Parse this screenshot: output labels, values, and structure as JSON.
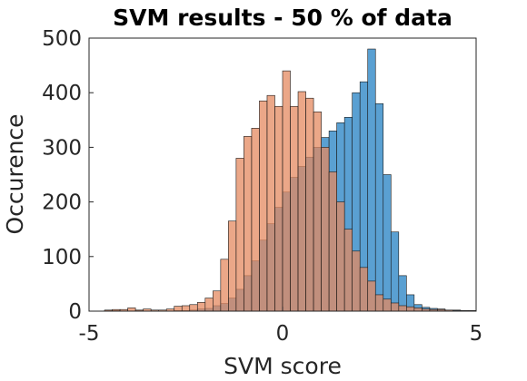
{
  "chart_data": {
    "type": "histogram",
    "title": "SVM results - 50 % of data",
    "xlabel": "SVM score",
    "ylabel": "Occurence",
    "xlim": [
      -5,
      5
    ],
    "ylim": [
      0,
      500
    ],
    "xticks": [
      "-5",
      "0",
      "5"
    ],
    "yticks": [
      "0",
      "100",
      "200",
      "300",
      "400",
      "500"
    ],
    "grid": false,
    "legend": "none",
    "bin_width": 0.2,
    "bin_start": -4.6,
    "series": [
      {
        "color": "#5aa0d2",
        "values": [
          1,
          1,
          0,
          0,
          1,
          0,
          0,
          0,
          0,
          1,
          1,
          2,
          4,
          5,
          10,
          14,
          24,
          40,
          65,
          92,
          130,
          160,
          190,
          218,
          245,
          265,
          282,
          300,
          318,
          330,
          345,
          355,
          400,
          420,
          480,
          380,
          250,
          145,
          65,
          30,
          12,
          7,
          5,
          4,
          2,
          2,
          1,
          1
        ]
      },
      {
        "color": "#e48a60",
        "values": [
          2,
          3,
          3,
          6,
          2,
          4,
          2,
          2,
          4,
          9,
          10,
          12,
          16,
          24,
          37,
          95,
          165,
          280,
          320,
          335,
          385,
          395,
          375,
          440,
          375,
          402,
          390,
          365,
          300,
          255,
          200,
          150,
          110,
          80,
          55,
          30,
          22,
          15,
          10,
          8,
          6,
          4,
          3,
          3,
          2,
          1,
          1,
          1
        ]
      }
    ]
  }
}
